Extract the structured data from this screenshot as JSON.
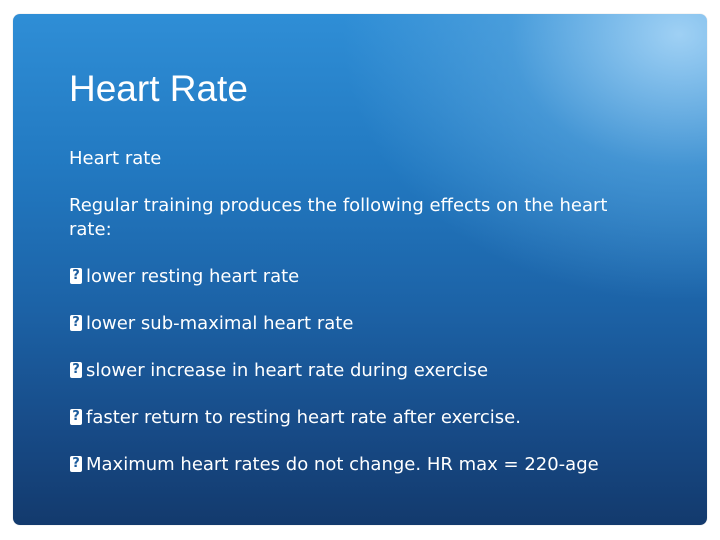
{
  "slide": {
    "title": "Heart Rate",
    "subtitle": "Heart rate",
    "intro": "Regular training produces the following effects on the heart rate:",
    "bullets": [
      "lower resting heart rate",
      "lower sub-maximal heart rate",
      "slower increase in heart rate during exercise",
      "faster return to resting heart rate after exercise.",
      "Maximum heart rates do not change. HR max = 220-age"
    ],
    "bullet_icon": "missing-glyph-icon",
    "colors": {
      "background_top": "#2f8ed6",
      "background_bottom": "#133a6d",
      "highlight": "#a5d4f6",
      "text": "#ffffff"
    }
  }
}
